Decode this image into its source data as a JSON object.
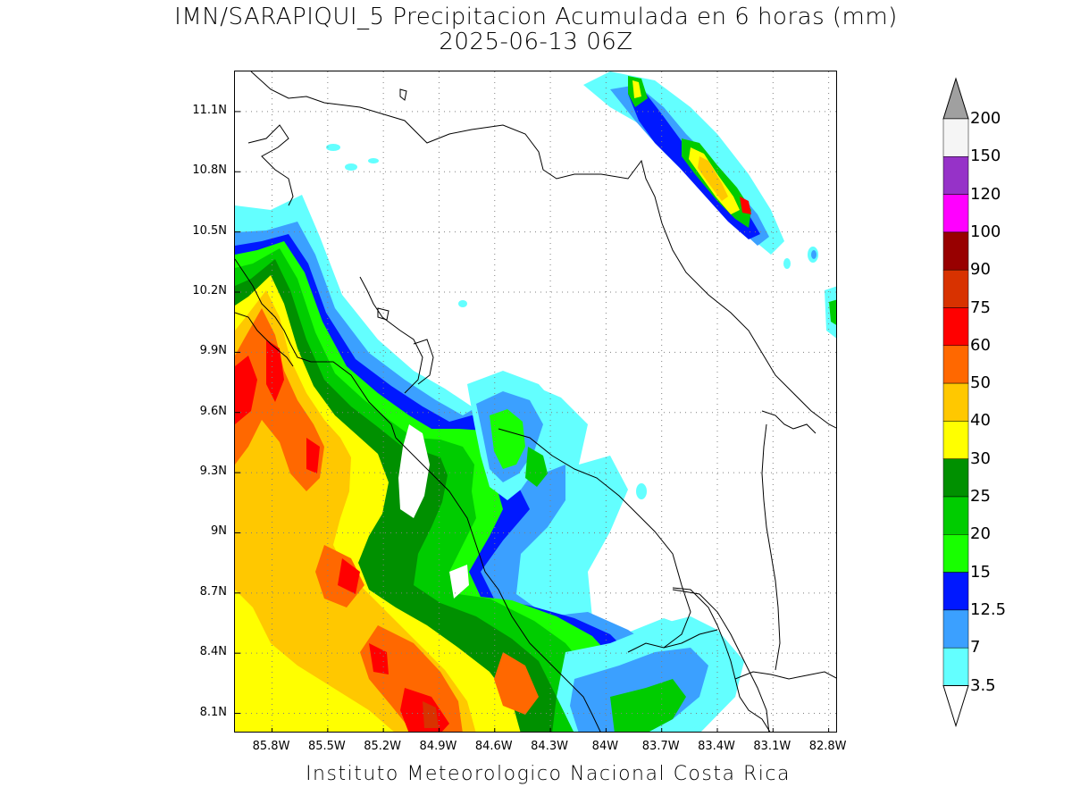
{
  "title": {
    "line1": "IMN/SARAPIQUI_5 Precipitacion Acumulada en 6 horas (mm)",
    "line2": "2025-06-13 06Z"
  },
  "footer": "Instituto Meteorologico Nacional Costa Rica",
  "map": {
    "lat_range": [
      8.0,
      11.3
    ],
    "lon_range": [
      -86.0,
      -82.75
    ],
    "y_ticks": [
      {
        "label": "11.1N",
        "value": 11.1
      },
      {
        "label": "10.8N",
        "value": 10.8
      },
      {
        "label": "10.5N",
        "value": 10.5
      },
      {
        "label": "10.2N",
        "value": 10.2
      },
      {
        "label": "9.9N",
        "value": 9.9
      },
      {
        "label": "9.6N",
        "value": 9.6
      },
      {
        "label": "9.3N",
        "value": 9.3
      },
      {
        "label": "9N",
        "value": 9.0
      },
      {
        "label": "8.7N",
        "value": 8.7
      },
      {
        "label": "8.4N",
        "value": 8.4
      },
      {
        "label": "8.1N",
        "value": 8.1
      }
    ],
    "x_ticks": [
      {
        "label": "85.8W",
        "value": -85.8
      },
      {
        "label": "85.5W",
        "value": -85.5
      },
      {
        "label": "85.2W",
        "value": -85.2
      },
      {
        "label": "84.9W",
        "value": -84.9
      },
      {
        "label": "84.6W",
        "value": -84.6
      },
      {
        "label": "84.3W",
        "value": -84.3
      },
      {
        "label": "84W",
        "value": -84.0
      },
      {
        "label": "83.7W",
        "value": -83.7
      },
      {
        "label": "83.4W",
        "value": -83.4
      },
      {
        "label": "83.1W",
        "value": -83.1
      },
      {
        "label": "82.8W",
        "value": -82.8
      }
    ],
    "grid": "dotted"
  },
  "legend": {
    "units": "mm",
    "levels": [
      "3.5",
      "7",
      "12.5",
      "15",
      "20",
      "25",
      "30",
      "40",
      "50",
      "60",
      "75",
      "90",
      "100",
      "120",
      "150",
      "200"
    ],
    "colors": [
      "#63ffff",
      "#3ba0ff",
      "#0018ff",
      "#18ff00",
      "#00cc00",
      "#009000",
      "#ffff00",
      "#ffc800",
      "#ff6800",
      "#ff0000",
      "#d83200",
      "#980000",
      "#ff00ff",
      "#9632c8",
      "#f5f5f5",
      "#a0a0a0"
    ]
  }
}
